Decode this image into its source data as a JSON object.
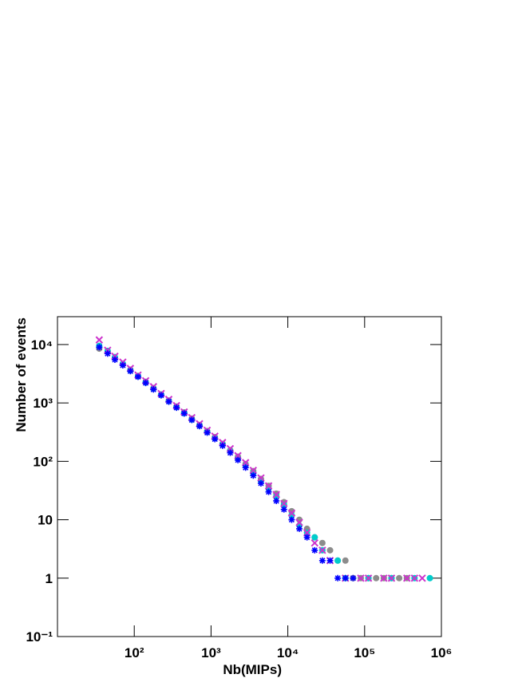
{
  "chart_data": {
    "type": "scatter",
    "xlabel": "Nb(MIPs)",
    "ylabel": "Number of events",
    "xscale": "log",
    "yscale": "log",
    "xlim": [
      10,
      1000000
    ],
    "ylim": [
      0.1,
      30000
    ],
    "xticks": [
      {
        "value": 100,
        "label": "10²"
      },
      {
        "value": 1000,
        "label": "10³"
      },
      {
        "value": 10000,
        "label": "10⁴"
      },
      {
        "value": 100000,
        "label": "10⁵"
      },
      {
        "value": 1000000,
        "label": "10⁶"
      }
    ],
    "yticks": [
      {
        "value": 0.1,
        "label": "10⁻¹"
      },
      1,
      10,
      {
        "value": 100,
        "label": "10²"
      },
      {
        "value": 1000,
        "label": "10³"
      },
      {
        "value": 10000,
        "label": "10⁴"
      }
    ],
    "x": [
      35,
      45,
      56,
      71,
      89,
      112,
      141,
      178,
      224,
      282,
      355,
      447,
      562,
      708,
      891,
      1122,
      1413,
      1778,
      2239,
      2818,
      3548,
      4467,
      5623,
      7079,
      8913,
      11220,
      14125,
      17783,
      22387,
      28184,
      35481,
      44668,
      56234,
      70795,
      89125,
      112202,
      141254,
      177828,
      223872,
      281838,
      354813,
      446684,
      562341,
      707946
    ],
    "series": [
      {
        "name": "",
        "marker": "circle",
        "color": "#8c8c8c",
        "values": [
          8500,
          7500,
          6000,
          4600,
          3700,
          2900,
          2300,
          1800,
          1400,
          1100,
          870,
          690,
          540,
          420,
          330,
          260,
          200,
          155,
          120,
          90,
          68,
          50,
          38,
          28,
          20,
          14,
          10,
          7,
          5,
          4,
          3,
          2,
          2,
          1,
          1,
          1,
          1,
          1,
          1,
          1,
          1,
          null,
          null,
          null
        ]
      },
      {
        "name": "",
        "marker": "circle",
        "color": "#00cccc",
        "values": [
          9500,
          7800,
          6100,
          4700,
          3600,
          2850,
          2250,
          1750,
          1380,
          1080,
          850,
          670,
          520,
          410,
          320,
          250,
          195,
          150,
          112,
          85,
          63,
          46,
          34,
          25,
          18,
          12,
          8,
          6,
          5,
          3,
          null,
          2,
          1,
          null,
          null,
          1,
          null,
          null,
          1,
          null,
          null,
          1,
          null,
          1
        ]
      },
      {
        "name": "",
        "marker": "cross",
        "color": "#cc33cc",
        "values": [
          12000,
          8000,
          6300,
          5000,
          3900,
          3000,
          2400,
          1900,
          1450,
          1150,
          900,
          700,
          560,
          440,
          340,
          270,
          210,
          165,
          125,
          95,
          70,
          52,
          38,
          27,
          19,
          13,
          9,
          6,
          4,
          3,
          2,
          null,
          1,
          null,
          1,
          1,
          null,
          1,
          1,
          null,
          1,
          1,
          1,
          null
        ]
      },
      {
        "name": "",
        "marker": "star",
        "color": "#0000ff",
        "values": [
          9000,
          7000,
          5500,
          4400,
          3500,
          2800,
          2200,
          1700,
          1350,
          1050,
          830,
          660,
          510,
          400,
          310,
          240,
          185,
          140,
          105,
          78,
          57,
          42,
          30,
          21,
          15,
          10,
          7,
          5,
          3,
          2,
          2,
          1,
          1,
          1,
          null,
          null,
          null,
          null,
          null,
          null,
          null,
          null,
          null,
          null
        ]
      }
    ]
  }
}
